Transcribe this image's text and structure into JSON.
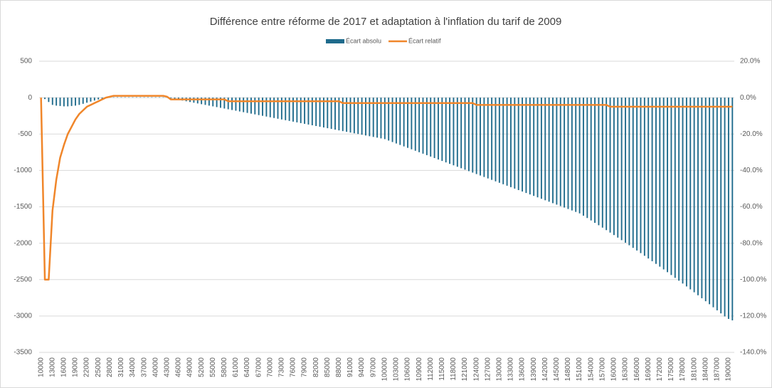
{
  "chart_data": {
    "type": "combo",
    "title": "Différence entre réforme de 2017 et adaptation à l'inflation du tarif de 2009",
    "categories": [
      "10000",
      null,
      null,
      "13000",
      null,
      null,
      "16000",
      null,
      null,
      "19000",
      null,
      null,
      "22000",
      null,
      null,
      "25000",
      null,
      null,
      "28000",
      null,
      null,
      "31000",
      null,
      null,
      "34000",
      null,
      null,
      "37000",
      null,
      null,
      "40000",
      null,
      null,
      "43000",
      null,
      null,
      "46000",
      null,
      null,
      "49000",
      null,
      null,
      "52000",
      null,
      null,
      "55000",
      null,
      null,
      "58000",
      null,
      null,
      "61000",
      null,
      null,
      "64000",
      null,
      null,
      "67000",
      null,
      null,
      "70000",
      null,
      null,
      "73000",
      null,
      null,
      "76000",
      null,
      null,
      "79000",
      null,
      null,
      "82000",
      null,
      null,
      "85000",
      null,
      null,
      "88000",
      null,
      null,
      "91000",
      null,
      null,
      "94000",
      null,
      null,
      "97000",
      null,
      null,
      "100000",
      null,
      null,
      "103000",
      null,
      null,
      "106000",
      null,
      null,
      "109000",
      null,
      null,
      "112000",
      null,
      null,
      "115000",
      null,
      null,
      "118000",
      null,
      null,
      "121000",
      null,
      null,
      "124000",
      null,
      null,
      "127000",
      null,
      null,
      "130000",
      null,
      null,
      "133000",
      null,
      null,
      "136000",
      null,
      null,
      "139000",
      null,
      null,
      "142000",
      null,
      null,
      "145000",
      null,
      null,
      "148000",
      null,
      null,
      "151000",
      null,
      null,
      "154000",
      null,
      null,
      "157000",
      null,
      null,
      "160000",
      null,
      null,
      "163000",
      null,
      null,
      "166000",
      null,
      null,
      "169000",
      null,
      null,
      "172000",
      null,
      null,
      "175000",
      null,
      null,
      "178000",
      null,
      null,
      "181000",
      null,
      null,
      "184000",
      null,
      null,
      "187000",
      null,
      null,
      "190000",
      null
    ],
    "series": [
      {
        "name": "Écart absolu",
        "type": "bar",
        "color": "#1f6b8c",
        "values": [
          0,
          -20,
          -60,
          -100,
          -110,
          -115,
          -120,
          -120,
          -115,
          -110,
          -100,
          -85,
          -70,
          -55,
          -40,
          -25,
          -15,
          -5,
          5,
          5,
          5,
          5,
          5,
          5,
          5,
          5,
          5,
          5,
          5,
          5,
          5,
          5,
          5,
          5,
          -10,
          -20,
          -30,
          -40,
          -50,
          -60,
          -70,
          -80,
          -90,
          -100,
          -110,
          -120,
          -130,
          -140,
          -150,
          -160,
          -170,
          -180,
          -190,
          -200,
          -210,
          -220,
          -230,
          -240,
          -250,
          -260,
          -270,
          -280,
          -290,
          -300,
          -310,
          -320,
          -330,
          -340,
          -350,
          -360,
          -370,
          -380,
          -390,
          -400,
          -410,
          -420,
          -430,
          -440,
          -450,
          -460,
          -470,
          -480,
          -490,
          -500,
          -510,
          -520,
          -530,
          -540,
          -550,
          -560,
          -570,
          -590,
          -610,
          -630,
          -650,
          -670,
          -690,
          -710,
          -730,
          -750,
          -770,
          -790,
          -810,
          -830,
          -850,
          -870,
          -890,
          -910,
          -930,
          -950,
          -970,
          -990,
          -1010,
          -1030,
          -1050,
          -1070,
          -1090,
          -1110,
          -1130,
          -1150,
          -1170,
          -1190,
          -1210,
          -1230,
          -1250,
          -1270,
          -1290,
          -1310,
          -1330,
          -1350,
          -1370,
          -1390,
          -1410,
          -1430,
          -1450,
          -1470,
          -1490,
          -1510,
          -1530,
          -1550,
          -1570,
          -1590,
          -1622,
          -1654,
          -1687,
          -1720,
          -1753,
          -1786,
          -1820,
          -1854,
          -1888,
          -1923,
          -1958,
          -1993,
          -2028,
          -2064,
          -2100,
          -2136,
          -2173,
          -2210,
          -2247,
          -2284,
          -2322,
          -2360,
          -2398,
          -2437,
          -2476,
          -2515,
          -2554,
          -2594,
          -2634,
          -2674,
          -2715,
          -2756,
          -2797,
          -2838,
          -2880,
          -2922,
          -2964,
          -3006,
          -3040,
          -3060
        ]
      },
      {
        "name": "Écart relatif",
        "type": "line",
        "axis": "y2",
        "color": "#f0862a",
        "values": [
          0,
          -100,
          -100,
          -62,
          -45,
          -33,
          -26,
          -20,
          -16,
          -12,
          -9,
          -7,
          -5,
          -4,
          -3,
          -2,
          -1,
          0,
          0.5,
          1,
          1,
          1,
          1,
          1,
          1,
          1,
          1,
          1,
          1,
          1,
          1,
          1,
          1,
          0.5,
          -1,
          -1,
          -1,
          -1,
          -1,
          -1,
          -1,
          -1,
          -1,
          -1,
          -1,
          -1,
          -1,
          -1,
          -1,
          -2,
          -2,
          -2,
          -2,
          -2,
          -2,
          -2,
          -2,
          -2,
          -2,
          -2,
          -2,
          -2,
          -2,
          -2,
          -2,
          -2,
          -2,
          -2,
          -2,
          -2,
          -2,
          -2,
          -2,
          -2,
          -2,
          -2,
          -2,
          -2,
          -2,
          -3,
          -3,
          -3,
          -3,
          -3,
          -3,
          -3,
          -3,
          -3,
          -3,
          -3,
          -3,
          -3,
          -3,
          -3,
          -3,
          -3,
          -3,
          -3,
          -3,
          -3,
          -3,
          -3,
          -3,
          -3,
          -3,
          -3,
          -3,
          -3,
          -3,
          -3,
          -3,
          -3,
          -3,
          -3,
          -4,
          -4,
          -4,
          -4,
          -4,
          -4,
          -4,
          -4,
          -4,
          -4,
          -4,
          -4,
          -4,
          -4,
          -4,
          -4,
          -4,
          -4,
          -4,
          -4,
          -4,
          -4,
          -4,
          -4,
          -4,
          -4,
          -4,
          -4,
          -4,
          -4,
          -4,
          -4,
          -4,
          -4,
          -4,
          -5,
          -5,
          -5,
          -5,
          -5,
          -5,
          -5,
          -5,
          -5,
          -5,
          -5,
          -5,
          -5,
          -5,
          -5,
          -5,
          -5,
          -5,
          -5,
          -5,
          -5,
          -5,
          -5,
          -5,
          -5,
          -5,
          -5,
          -5,
          -5,
          -5,
          -5,
          -5,
          -5
        ]
      }
    ],
    "ylim": [
      -3500,
      500
    ],
    "yticks": [
      500,
      0,
      -500,
      -1000,
      -1500,
      -2000,
      -2500,
      -3000,
      -3500
    ],
    "y2lim": [
      -140,
      20
    ],
    "y2ticks": [
      {
        "value": 20,
        "label": "20.0%"
      },
      {
        "value": 0,
        "label": "0.0%"
      },
      {
        "value": -20,
        "label": "-20.0%"
      },
      {
        "value": -40,
        "label": "-40.0%"
      },
      {
        "value": -60,
        "label": "-60.0%"
      },
      {
        "value": -80,
        "label": "-80.0%"
      },
      {
        "value": -100,
        "label": "-100.0%"
      },
      {
        "value": -120,
        "label": "-120.0%"
      },
      {
        "value": -140,
        "label": "-140.0%"
      }
    ],
    "grid": true,
    "legend": "top"
  }
}
